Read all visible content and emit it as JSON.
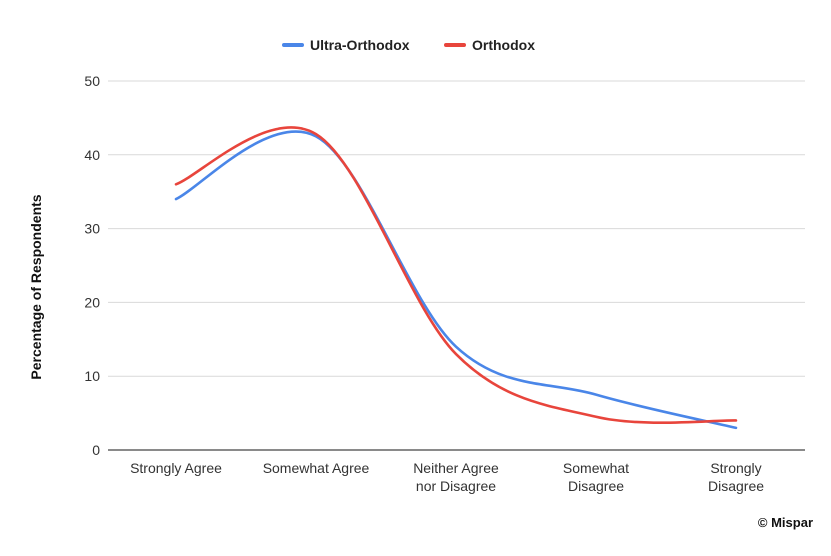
{
  "chart_data": {
    "type": "line",
    "title": "",
    "xlabel": "",
    "ylabel": "Percentage of Respondents",
    "categories": [
      "Strongly Agree",
      "Somewhat Agree",
      "Neither Agree nor Disagree",
      "Somewhat Disagree",
      "Strongly Disagree"
    ],
    "category_lines": [
      [
        "Strongly Agree"
      ],
      [
        "Somewhat Agree"
      ],
      [
        "Neither Agree",
        "nor Disagree"
      ],
      [
        "Somewhat",
        "Disagree"
      ],
      [
        "Strongly",
        "Disagree"
      ]
    ],
    "ylim": [
      0,
      50
    ],
    "yticks": [
      0,
      10,
      20,
      30,
      40,
      50
    ],
    "grid": true,
    "legend_position": "top-center",
    "series": [
      {
        "name": "Ultra-Orthodox",
        "color": "#4a86e8",
        "values": [
          34,
          42.5,
          14,
          7.5,
          3
        ]
      },
      {
        "name": "Orthodox",
        "color": "#e8453c",
        "values": [
          36,
          42.8,
          13,
          4.5,
          4
        ]
      }
    ]
  },
  "footer": {
    "copyright": "© Mispar"
  },
  "colors": {
    "grid": "#d9d9d9",
    "axis": "#444444"
  }
}
